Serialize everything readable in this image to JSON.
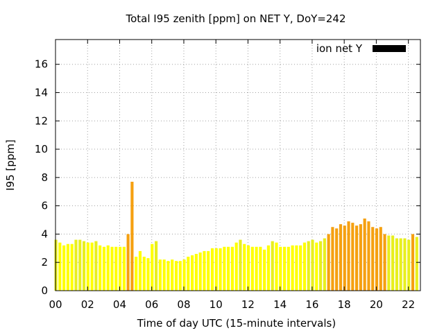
{
  "chart_data": {
    "type": "bar",
    "title": "Total I95 zenith [ppm] on NET Y, DoY=242",
    "xlabel": "Time of day UTC (15-minute intervals)",
    "ylabel": "I95 [ppm]",
    "ylim": [
      0,
      17.75
    ],
    "xlim": [
      0,
      22.75
    ],
    "y_ticks": [
      "0",
      "2",
      "4",
      "6",
      "8",
      "10",
      "12",
      "14",
      "16"
    ],
    "x_ticks": [
      "00",
      "02",
      "04",
      "06",
      "08",
      "10",
      "12",
      "14",
      "16",
      "18",
      "20",
      "22"
    ],
    "grid": true,
    "legend": {
      "position": "top-right",
      "label": "ion net Y",
      "color": "#000000"
    },
    "bar_interval_hours": 0.25,
    "colors": {
      "low": "#ffff00",
      "mid": "#e8ef1e",
      "high": "#f5a010"
    },
    "series": [
      {
        "x": [
          0,
          0.25,
          0.5,
          0.75,
          1,
          1.25,
          1.5,
          1.75,
          2,
          2.25,
          2.5,
          2.75,
          3,
          3.25,
          3.5,
          3.75,
          4,
          4.25,
          4.5,
          4.75,
          5,
          5.25,
          5.5,
          5.75,
          6,
          6.25,
          6.5,
          6.75,
          7,
          7.25,
          7.5,
          7.75,
          8,
          8.25,
          8.5,
          8.75,
          9,
          9.25,
          9.5,
          9.75,
          10,
          10.25,
          10.5,
          10.75,
          11,
          11.25,
          11.5,
          11.75,
          12,
          12.25,
          12.5,
          12.75,
          13,
          13.25,
          13.5,
          13.75,
          14,
          14.25,
          14.5,
          14.75,
          15,
          15.25,
          15.5,
          15.75,
          16,
          16.25,
          16.5,
          16.75,
          17,
          17.25,
          17.5,
          17.75,
          18,
          18.25,
          18.5,
          18.75,
          19,
          19.25,
          19.5,
          19.75,
          20,
          20.25,
          20.5,
          20.75,
          21,
          21.25,
          21.5,
          21.75,
          22,
          22.25,
          22.5
        ],
        "values": [
          3.6,
          3.4,
          3.2,
          3.3,
          3.3,
          3.6,
          3.6,
          3.5,
          3.4,
          3.4,
          3.5,
          3.2,
          3.1,
          3.2,
          3.1,
          3.1,
          3.1,
          3.1,
          4.0,
          7.7,
          2.4,
          2.8,
          2.4,
          2.3,
          3.3,
          3.5,
          2.2,
          2.2,
          2.1,
          2.2,
          2.1,
          2.1,
          2.2,
          2.4,
          2.5,
          2.6,
          2.7,
          2.8,
          2.8,
          3.0,
          3.0,
          3.0,
          3.1,
          3.1,
          3.1,
          3.4,
          3.6,
          3.3,
          3.2,
          3.1,
          3.1,
          3.1,
          2.9,
          3.2,
          3.5,
          3.4,
          3.1,
          3.1,
          3.1,
          3.2,
          3.2,
          3.2,
          3.4,
          3.5,
          3.6,
          3.4,
          3.5,
          3.7,
          4.0,
          4.5,
          4.4,
          4.7,
          4.6,
          4.9,
          4.8,
          4.6,
          4.7,
          5.1,
          4.9,
          4.5,
          4.4,
          4.5,
          4.0,
          3.9,
          3.9,
          3.7,
          3.7,
          3.7,
          3.6,
          4.0,
          3.8
        ]
      }
    ]
  }
}
